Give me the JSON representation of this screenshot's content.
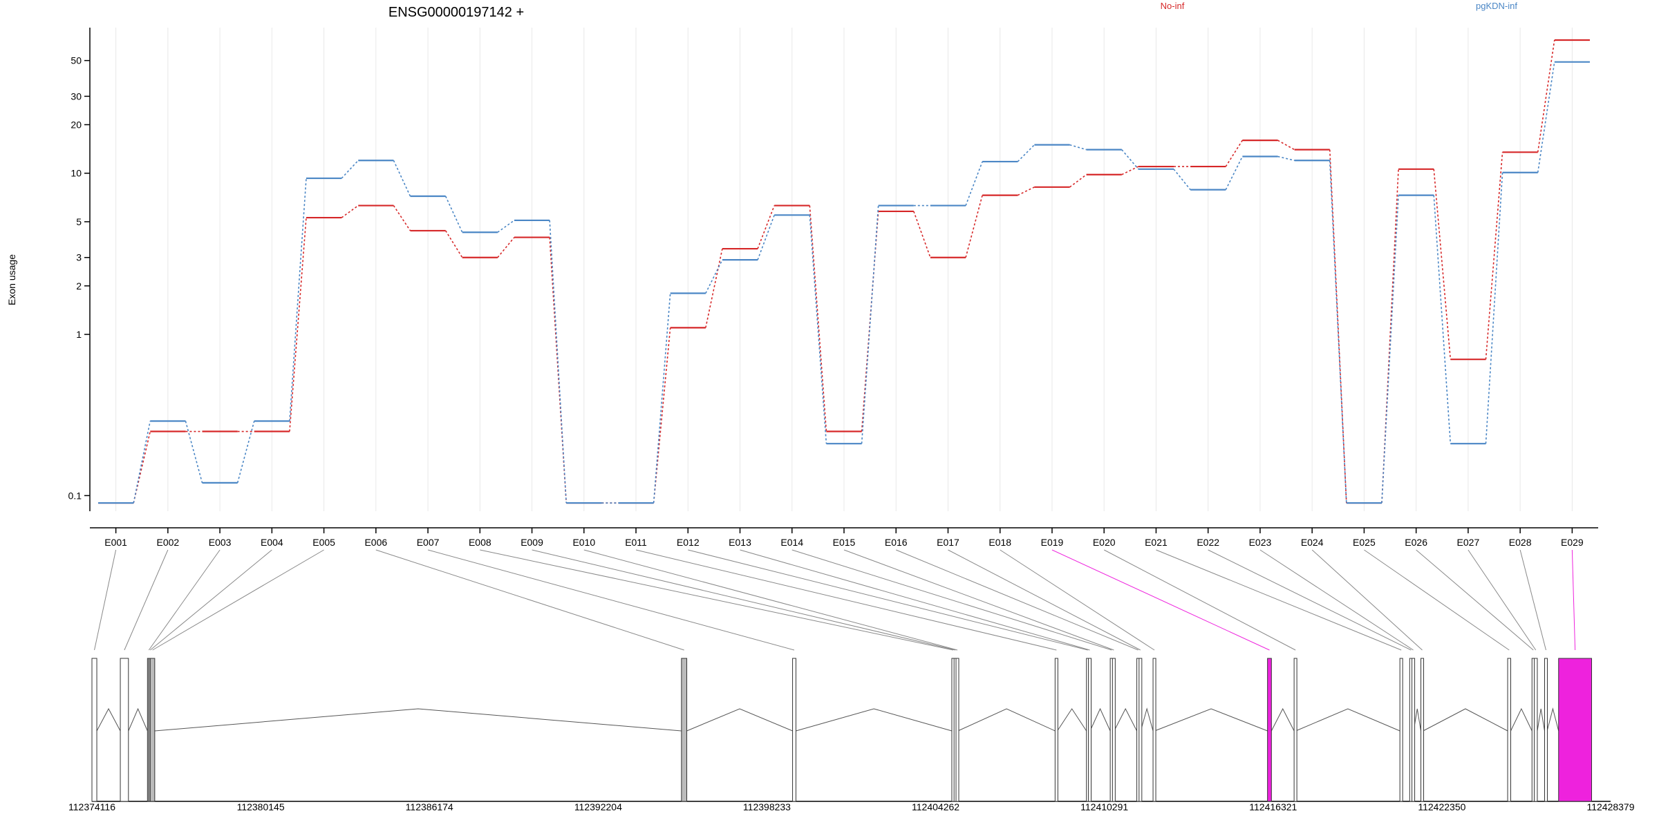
{
  "chart_data": {
    "type": "line",
    "title": "ENSG00000197142 +",
    "ylabel": "Exon usage",
    "y_scale": "log",
    "ylim": [
      0.08,
      80
    ],
    "categories": [
      "E001",
      "E002",
      "E003",
      "E004",
      "E005",
      "E006",
      "E007",
      "E008",
      "E009",
      "E010",
      "E011",
      "E012",
      "E013",
      "E014",
      "E015",
      "E016",
      "E017",
      "E018",
      "E019",
      "E020",
      "E021",
      "E022",
      "E023",
      "E024",
      "E025",
      "E026",
      "E027",
      "E028",
      "E029"
    ],
    "y_ticks": [
      0.1,
      1,
      2,
      3,
      5,
      10,
      20,
      30,
      50
    ],
    "y_tick_labels": [
      "0.1",
      "1",
      "2",
      "3",
      "5",
      "10",
      "20",
      "30",
      "50"
    ],
    "series": [
      {
        "name": "No-inf",
        "color": "#d62728",
        "values": [
          0.09,
          0.25,
          0.25,
          0.25,
          5.3,
          6.3,
          4.4,
          3.0,
          4.0,
          0.09,
          0.09,
          1.1,
          3.4,
          6.3,
          0.25,
          5.8,
          3.0,
          7.3,
          8.2,
          9.8,
          11.0,
          11.0,
          16.0,
          14.0,
          0.09,
          10.6,
          0.7,
          13.5,
          67.0
        ]
      },
      {
        "name": "pgKDN-inf",
        "color": "#4a86c5",
        "values": [
          0.09,
          0.29,
          0.12,
          0.29,
          9.3,
          12.0,
          7.2,
          4.3,
          5.1,
          0.09,
          0.09,
          1.8,
          2.9,
          5.5,
          0.21,
          6.3,
          6.3,
          11.8,
          15.0,
          14.0,
          10.6,
          7.9,
          12.7,
          12.0,
          0.09,
          7.3,
          0.21,
          10.1,
          49.0
        ]
      }
    ],
    "highlighted_exons": [
      "E019",
      "E029"
    ],
    "highlight_color": "#ee22dd",
    "gene_model": {
      "coordinate_labels": [
        "112374116",
        "112380145",
        "112386174",
        "112392204",
        "112398233",
        "112404262",
        "112410291",
        "112416321",
        "112422350",
        "112428379"
      ],
      "exons": [
        {
          "id": "E001",
          "start": 112374116,
          "end": 112374290
        },
        {
          "id": "E002",
          "start": 112375130,
          "end": 112375420
        },
        {
          "id": "E003",
          "start": 112376100,
          "end": 112376150
        },
        {
          "id": "E004",
          "start": 112376150,
          "end": 112376200
        },
        {
          "id": "E005",
          "start": 112376200,
          "end": 112376360
        },
        {
          "id": "E006",
          "start": 112395180,
          "end": 112395370
        },
        {
          "id": "E007",
          "start": 112399150,
          "end": 112399270
        },
        {
          "id": "E008",
          "start": 112404840,
          "end": 112404900
        },
        {
          "id": "E009",
          "start": 112404920,
          "end": 112404970
        },
        {
          "id": "E010",
          "start": 112404990,
          "end": 112405060
        },
        {
          "id": "E011",
          "start": 112408530,
          "end": 112408610
        },
        {
          "id": "E012",
          "start": 112409650,
          "end": 112409710
        },
        {
          "id": "E013",
          "start": 112409720,
          "end": 112409780
        },
        {
          "id": "E014",
          "start": 112410500,
          "end": 112410560
        },
        {
          "id": "E015",
          "start": 112410580,
          "end": 112410640
        },
        {
          "id": "E016",
          "start": 112411450,
          "end": 112411510
        },
        {
          "id": "E017",
          "start": 112411530,
          "end": 112411590
        },
        {
          "id": "E018",
          "start": 112412030,
          "end": 112412090
        },
        {
          "id": "E019",
          "start": 112416120,
          "end": 112416260
        },
        {
          "id": "E020",
          "start": 112417070,
          "end": 112417130
        },
        {
          "id": "E021",
          "start": 112420850,
          "end": 112420910
        },
        {
          "id": "E022",
          "start": 112421200,
          "end": 112421260
        },
        {
          "id": "E023",
          "start": 112421280,
          "end": 112421340
        },
        {
          "id": "E024",
          "start": 112421600,
          "end": 112421680
        },
        {
          "id": "E025",
          "start": 112424700,
          "end": 112424810
        },
        {
          "id": "E026",
          "start": 112425570,
          "end": 112425630
        },
        {
          "id": "E027",
          "start": 112425650,
          "end": 112425760
        },
        {
          "id": "E028",
          "start": 112426020,
          "end": 112426110
        },
        {
          "id": "E029",
          "start": 112426520,
          "end": 112427700
        }
      ],
      "introns": [
        [
          112374290,
          112375130
        ],
        [
          112375420,
          112376100
        ],
        [
          112376360,
          112395180
        ],
        [
          112395370,
          112399150
        ],
        [
          112399270,
          112404840
        ],
        [
          112405060,
          112408530
        ],
        [
          112408610,
          112409650
        ],
        [
          112409780,
          112410500
        ],
        [
          112410640,
          112411450
        ],
        [
          112411590,
          112412030
        ],
        [
          112412090,
          112416120
        ],
        [
          112416260,
          112417070
        ],
        [
          112417130,
          112420850
        ],
        [
          112421340,
          112421600
        ],
        [
          112421680,
          112424700
        ],
        [
          112424810,
          112425570
        ],
        [
          112425760,
          112426020
        ],
        [
          112426110,
          112426520
        ]
      ],
      "grey_exons": [
        "E003",
        "E004",
        "E005",
        "E006"
      ]
    }
  }
}
